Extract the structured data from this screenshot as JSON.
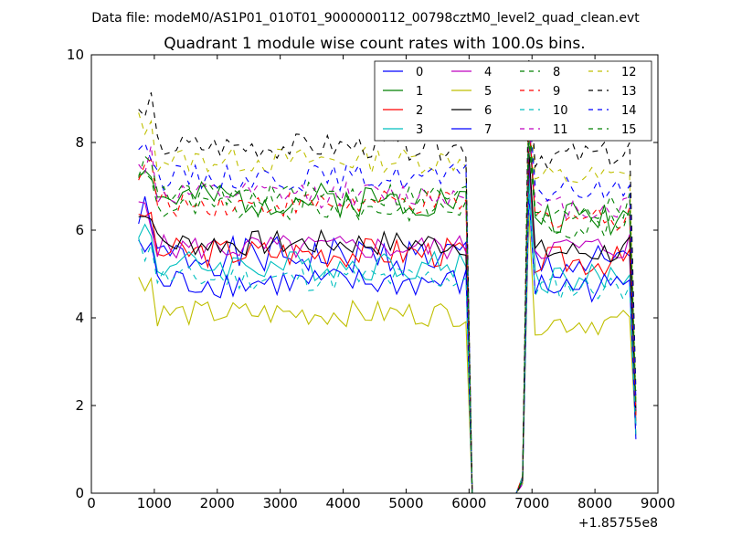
{
  "chart_data": {
    "type": "line",
    "suptitle": "Data file: modeM0/AS1P01_010T01_9000000112_00798cztM0_level2_quad_clean.evt",
    "title": "Quadrant 1 module wise count rates with 100.0s bins.",
    "xlabel": "",
    "ylabel": "",
    "x_offset_label": "+1.85755e8",
    "xlim": [
      0,
      9000
    ],
    "ylim": [
      0,
      10
    ],
    "xticks": [
      0,
      1000,
      2000,
      3000,
      4000,
      5000,
      6000,
      7000,
      8000,
      9000
    ],
    "yticks": [
      0,
      2,
      4,
      6,
      8,
      10
    ],
    "legend_position": "top-right",
    "x_segments": [
      {
        "start": 750,
        "end": 6150,
        "step": 100
      },
      {
        "start": 6150,
        "end": 6750,
        "step": 150
      },
      {
        "start": 6750,
        "end": 8650,
        "step": 100
      }
    ],
    "series": [
      {
        "name": "0",
        "color": "#0000ff",
        "dash": "solid",
        "level1": 5.4,
        "level2": 5.2,
        "amp": 0.45,
        "seed": 1
      },
      {
        "name": "1",
        "color": "#008000",
        "dash": "solid",
        "level1": 6.7,
        "level2": 6.3,
        "amp": 0.4,
        "seed": 2
      },
      {
        "name": "2",
        "color": "#ff0000",
        "dash": "solid",
        "level1": 5.5,
        "level2": 5.3,
        "amp": 0.35,
        "seed": 3
      },
      {
        "name": "3",
        "color": "#00bfbf",
        "dash": "solid",
        "level1": 5.2,
        "level2": 4.9,
        "amp": 0.35,
        "seed": 4
      },
      {
        "name": "4",
        "color": "#bf00bf",
        "dash": "solid",
        "level1": 5.6,
        "level2": 5.6,
        "amp": 0.3,
        "seed": 5
      },
      {
        "name": "5",
        "color": "#bfbf00",
        "dash": "solid",
        "level1": 4.1,
        "level2": 3.9,
        "amp": 0.3,
        "seed": 6
      },
      {
        "name": "6",
        "color": "#000000",
        "dash": "solid",
        "level1": 5.7,
        "level2": 5.5,
        "amp": 0.3,
        "seed": 7
      },
      {
        "name": "7",
        "color": "#0000ff",
        "dash": "solid",
        "level1": 4.8,
        "level2": 4.7,
        "amp": 0.35,
        "seed": 8
      },
      {
        "name": "8",
        "color": "#008000",
        "dash": "dashed",
        "level1": 6.5,
        "level2": 6.1,
        "amp": 0.3,
        "seed": 9
      },
      {
        "name": "9",
        "color": "#ff0000",
        "dash": "dashed",
        "level1": 6.6,
        "level2": 6.3,
        "amp": 0.3,
        "seed": 10
      },
      {
        "name": "10",
        "color": "#00bfbf",
        "dash": "dashed",
        "level1": 4.9,
        "level2": 4.7,
        "amp": 0.3,
        "seed": 11
      },
      {
        "name": "11",
        "color": "#bf00bf",
        "dash": "dashed",
        "level1": 6.8,
        "level2": 6.5,
        "amp": 0.3,
        "seed": 12
      },
      {
        "name": "12",
        "color": "#bfbf00",
        "dash": "dashed",
        "level1": 7.6,
        "level2": 7.2,
        "amp": 0.3,
        "seed": 13
      },
      {
        "name": "13",
        "color": "#000000",
        "dash": "dashed",
        "level1": 7.9,
        "level2": 7.7,
        "amp": 0.3,
        "seed": 14
      },
      {
        "name": "14",
        "color": "#0000ff",
        "dash": "dashed",
        "level1": 7.2,
        "level2": 6.9,
        "amp": 0.3,
        "seed": 15
      },
      {
        "name": "15",
        "color": "#008000",
        "dash": "dashed",
        "level1": 6.8,
        "level2": 6.5,
        "amp": 0.3,
        "seed": 16
      }
    ]
  }
}
